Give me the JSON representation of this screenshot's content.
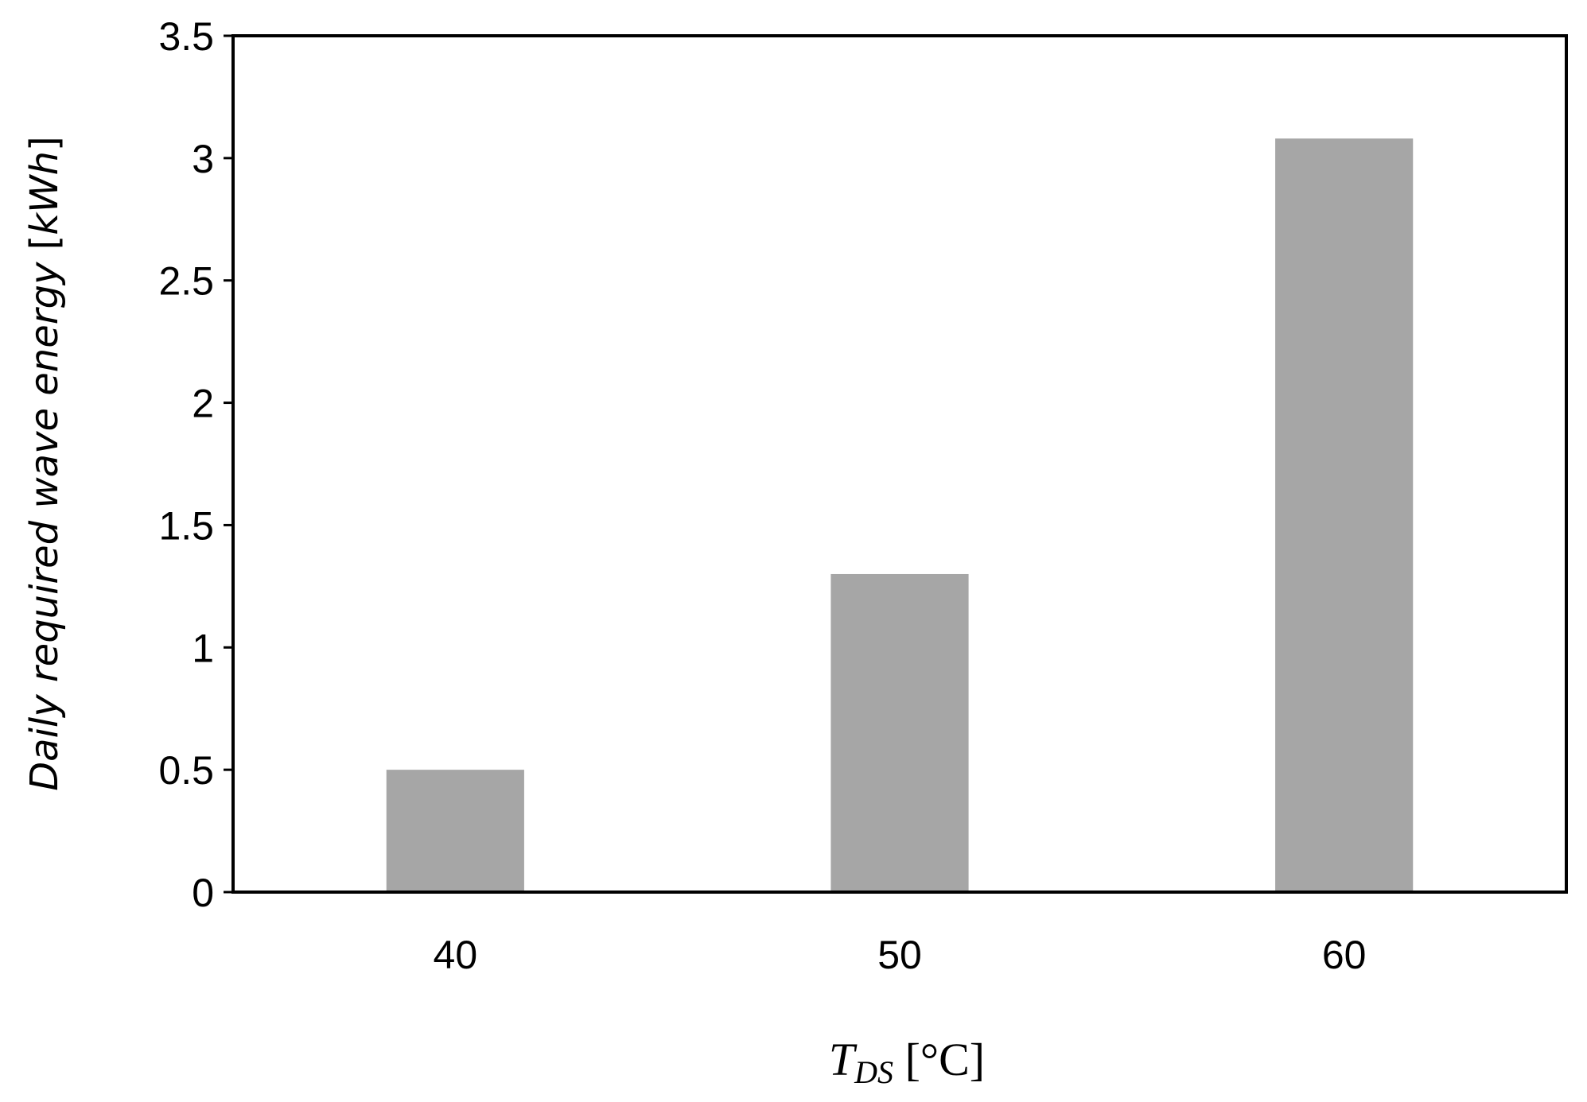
{
  "chart_data": {
    "type": "bar",
    "categories": [
      "40",
      "50",
      "60"
    ],
    "values": [
      0.5,
      1.3,
      3.08
    ],
    "ylabel": "Daily required wave energy [kWh]",
    "ylabel_parts": {
      "text": "Daily required wave energy ",
      "unit_open": "[",
      "unit": "kWh",
      "unit_close": "]"
    },
    "xlabel": "T_DS [°C]",
    "xlabel_parts": {
      "var": "T",
      "sub": "DS",
      "unit": " [°C]"
    },
    "ylim": [
      0,
      3.5
    ],
    "yticks": [
      "0",
      "0.5",
      "1",
      "1.5",
      "2",
      "2.5",
      "3",
      "3.5"
    ],
    "ytick_values": [
      0,
      0.5,
      1,
      1.5,
      2,
      2.5,
      3,
      3.5
    ],
    "grid": false,
    "legend": "none",
    "bar_color": "#a6a6a6",
    "axis_color": "#000000"
  }
}
